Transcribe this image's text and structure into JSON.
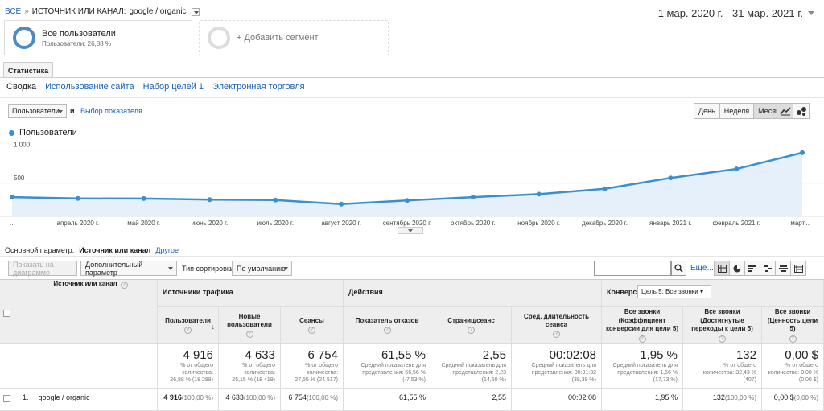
{
  "breadcrumb": {
    "all": "ВСЕ",
    "sep": "»",
    "dim": "ИСТОЧНИК ИЛИ КАНАЛ:",
    "value": "google / organic"
  },
  "date_range": "1 мар. 2020 г. - 31 мар. 2021 г.",
  "segments": {
    "all_users": {
      "title": "Все пользователи",
      "subtitle": "Пользователи: 26,88 %"
    },
    "add_segment": "+ Добавить сегмент"
  },
  "tabs": {
    "main": "Статистика",
    "sub": [
      "Сводка",
      "Использование сайта",
      "Набор целей 1",
      "Электронная торговля"
    ]
  },
  "chart_controls": {
    "metric": "Пользователи",
    "and": "и",
    "pick_metric": "Выбор показателя",
    "periods": [
      "День",
      "Неделя",
      "Месяц"
    ],
    "active_period": "Месяц"
  },
  "chart_data": {
    "type": "line",
    "legend": "Пользователи",
    "y_ticks": [
      "1 000",
      "500"
    ],
    "yticks_values": [
      1000,
      500
    ],
    "ylim": [
      0,
      1080
    ],
    "x_labels": [
      "...",
      "апрель 2020 г.",
      "май 2020 г.",
      "июнь 2020 г.",
      "июль 2020 г.",
      "август 2020 г.",
      "сентябрь 2020 г.",
      "октябрь 2020 г.",
      "ноябрь 2020 г.",
      "декабрь 2020 г.",
      "январь 2021 г.",
      "февраль 2021 г.",
      "март..."
    ],
    "values": [
      290,
      270,
      268,
      252,
      245,
      185,
      240,
      290,
      335,
      415,
      580,
      715,
      960
    ],
    "color": "#3b8fcf"
  },
  "primary_dim": {
    "label": "Основной параметр:",
    "value": "Источник или канал",
    "other": "Другое"
  },
  "toolbar": {
    "plot": "Показать на диаграмме",
    "secondary": "Дополнительный параметр",
    "sort_label": "Тип сортировки:",
    "sort_value": "По умолчанию",
    "more": "Ещё..."
  },
  "table": {
    "dim_header": "Источник или канал",
    "groups": {
      "traffic": "Источники трафика",
      "actions": "Действия",
      "conversions": "Конверсии",
      "goal_select": "Цель 5: Все звонки"
    },
    "columns": [
      "Пользователи",
      "Новые пользователи",
      "Сеансы",
      "Показатель отказов",
      "Страниц/сеанс",
      "Сред. длительность сеанса",
      "Все звонки (Коэффициент конверсии для цели 5)",
      "Все звонки (Достигнутые переходы к цели 5)",
      "Все звонки (Ценность цели 5)"
    ],
    "totals": [
      {
        "big": "4 916",
        "sm": [
          "% от общего",
          "количества:",
          "26,88 % (18 288)"
        ]
      },
      {
        "big": "4 633",
        "sm": [
          "% от общего",
          "количества:",
          "25,15 % (18 419)"
        ]
      },
      {
        "big": "6 754",
        "sm": [
          "% от общего",
          "количества:",
          "27,55 % (24 517)"
        ]
      },
      {
        "big": "61,55 %",
        "sm": [
          "Средний показатель для",
          "представления: 66,56 %",
          "(-7,53 %)"
        ]
      },
      {
        "big": "2,55",
        "sm": [
          "Средний показатель для",
          "представления: 2,23",
          "(14,50 %)"
        ]
      },
      {
        "big": "00:02:08",
        "sm": [
          "Средний показатель для",
          "представления: 00:01:32",
          "(38,39 %)"
        ]
      },
      {
        "big": "1,95 %",
        "sm": [
          "Средний показатель для",
          "представления: 1,66 %",
          "(17,73 %)"
        ]
      },
      {
        "big": "132",
        "sm": [
          "% от общего",
          "количества: 32,43 %",
          "(407)"
        ]
      },
      {
        "big": "0,00 $",
        "sm": [
          "% от общего",
          "количества: 0,00 %",
          "(0,00 $)"
        ]
      }
    ],
    "rows": [
      {
        "index": "1.",
        "name": "google / organic",
        "cells": [
          {
            "v": "4 916",
            "p": "(100,00 %)",
            "bold": true
          },
          {
            "v": "4 633",
            "p": "(100,00 %)"
          },
          {
            "v": "6 754",
            "p": "(100,00 %)"
          },
          {
            "v": "61,55 %",
            "p": ""
          },
          {
            "v": "2,55",
            "p": ""
          },
          {
            "v": "00:02:08",
            "p": ""
          },
          {
            "v": "1,95 %",
            "p": ""
          },
          {
            "v": "132",
            "p": "(100,00 %)"
          },
          {
            "v": "0,00 $",
            "p": "(0,00 %)"
          }
        ]
      }
    ]
  }
}
